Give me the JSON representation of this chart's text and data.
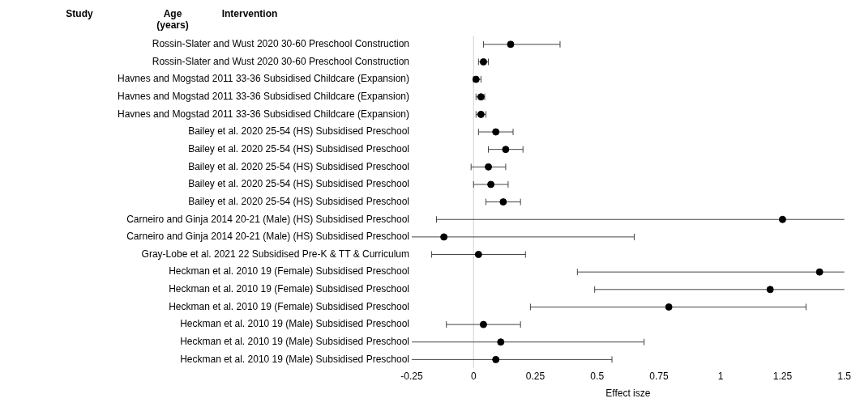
{
  "chart_data": {
    "type": "scatter",
    "orientation": "horizontal",
    "xlabel": "Effect isze",
    "annotations": [
      "Study",
      "Age (years)",
      "Intervention"
    ],
    "categories": [
      "Rossin-Slater and Wust 2020 30-60 Preschool Construction",
      "Rossin-Slater and Wust 2020 30-60 Preschool Construction",
      "Havnes and Mogstad 2011 33-36 Subsidised Childcare (Expansion)",
      "Havnes and Mogstad 2011 33-36 Subsidised Childcare (Expansion)",
      "Havnes and Mogstad 2011 33-36 Subsidised Childcare (Expansion)",
      "Bailey et al. 2020 25-54 (HS) Subsidised Preschool",
      "Bailey et al. 2020 25-54 (HS) Subsidised Preschool",
      "Bailey et al. 2020 25-54 (HS) Subsidised Preschool",
      "Bailey et al. 2020 25-54 (HS) Subsidised Preschool",
      "Bailey et al. 2020 25-54 (HS) Subsidised Preschool",
      "Carneiro and Ginja 2014 20-21 (Male) (HS) Subsidised Preschool",
      "Carneiro and Ginja 2014 20-21 (Male) (HS) Subsidised Preschool",
      "Gray-Lobe et al. 2021 22 Subsidised Pre-K & TT & Curriculum",
      "Heckman et al. 2010 19 (Female) Subsidised Preschool",
      "Heckman et al. 2010 19 (Female) Subsidised Preschool",
      "Heckman et al. 2010 19 (Female) Subsidised Preschool",
      "Heckman et al. 2010 19 (Male) Subsidised Preschool",
      "Heckman et al. 2010 19 (Male) Subsidised Preschool",
      "Heckman et al. 2010 19 (Male) Subsidised Preschool"
    ],
    "values": [
      0.15,
      0.04,
      0.01,
      0.03,
      0.03,
      0.09,
      0.13,
      0.06,
      0.07,
      0.12,
      1.25,
      -0.12,
      0.02,
      1.4,
      1.2,
      0.79,
      0.04,
      0.11,
      0.09
    ],
    "errors": [
      [
        0.04,
        0.35
      ],
      [
        0.02,
        0.06
      ],
      [
        0,
        0.03
      ],
      [
        0.01,
        0.045
      ],
      [
        0.01,
        0.05
      ],
      [
        0.02,
        0.16
      ],
      [
        0.06,
        0.2
      ],
      [
        -0.01,
        0.13
      ],
      [
        0,
        0.14
      ],
      [
        0.05,
        0.19
      ],
      [
        -0.15,
        1.5
      ],
      [
        -0.25,
        0.65
      ],
      [
        -0.17,
        0.21
      ],
      [
        0.42,
        1.5
      ],
      [
        0.49,
        1.5
      ],
      [
        0.23,
        1.345
      ],
      [
        -0.11,
        0.19
      ],
      [
        -0.25,
        0.69
      ],
      [
        -0.25,
        0.56
      ]
    ],
    "color": "#000000",
    "marker": "circle",
    "xlim": [
      -0.25,
      1.5
    ],
    "xticks": [
      -0.25,
      0,
      0.25,
      0.5,
      0.75,
      1,
      1.25,
      1.5
    ],
    "ref_lines": [
      {
        "axis": "x",
        "value": 0,
        "color": "#d0d0d0"
      }
    ],
    "grid": false,
    "legend": false
  }
}
